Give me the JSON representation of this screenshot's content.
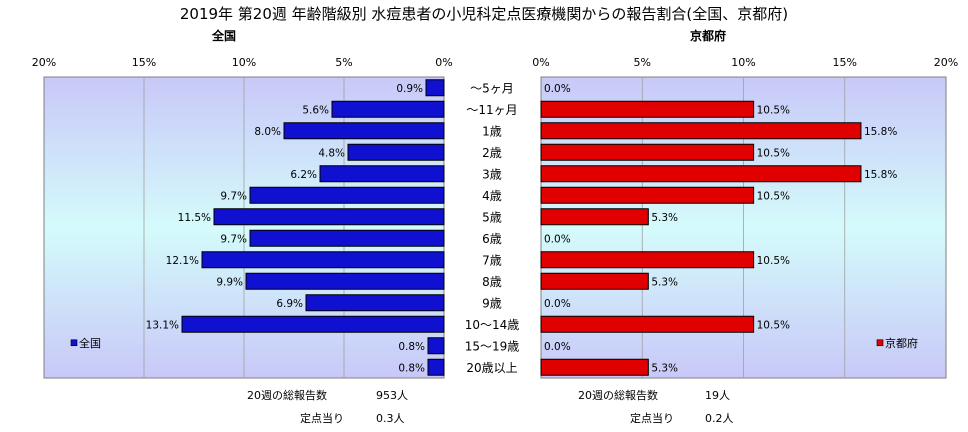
{
  "chart_data": {
    "type": "bar",
    "title": "2019年 第20週 年齢階級別 水痘患者の小児科定点医療機関からの報告割合(全国、京都府)",
    "categories": [
      "～5ヶ月",
      "～11ヶ月",
      "1歳",
      "2歳",
      "3歳",
      "4歳",
      "5歳",
      "6歳",
      "7歳",
      "8歳",
      "9歳",
      "10～14歳",
      "15～19歳",
      "20歳以上"
    ],
    "unit": "%",
    "xlim": [
      0,
      20
    ],
    "ticks": [
      "0%",
      "5%",
      "10%",
      "15%",
      "20%"
    ],
    "grid": true,
    "panels": [
      {
        "title": "全国",
        "legend": "全国",
        "color": "#1010d0",
        "direction": "left",
        "values": [
          0.9,
          5.6,
          8.0,
          4.8,
          6.2,
          9.7,
          11.5,
          9.7,
          12.1,
          9.9,
          6.9,
          13.1,
          0.8,
          0.8
        ],
        "labels": [
          "0.9%",
          "5.6%",
          "8.0%",
          "4.8%",
          "6.2%",
          "9.7%",
          "11.5%",
          "9.7%",
          "12.1%",
          "9.9%",
          "6.9%",
          "13.1%",
          "0.8%",
          "0.8%"
        ],
        "total_label": "20週の総報告数",
        "total_value": "953人",
        "per_site_label": "定点当り",
        "per_site_value": "0.3人"
      },
      {
        "title": "京都府",
        "legend": "京都府",
        "color": "#e00000",
        "direction": "right",
        "values": [
          0.0,
          10.5,
          15.8,
          10.5,
          15.8,
          10.5,
          5.3,
          0.0,
          10.5,
          5.3,
          0.0,
          10.5,
          0.0,
          5.3
        ],
        "labels": [
          "0.0%",
          "10.5%",
          "15.8%",
          "10.5%",
          "15.8%",
          "10.5%",
          "5.3%",
          "0.0%",
          "10.5%",
          "5.3%",
          "0.0%",
          "10.5%",
          "0.0%",
          "5.3%"
        ],
        "total_label": "20週の総報告数",
        "total_value": "19人",
        "per_site_label": "定点当り",
        "per_site_value": "0.2人"
      }
    ]
  }
}
